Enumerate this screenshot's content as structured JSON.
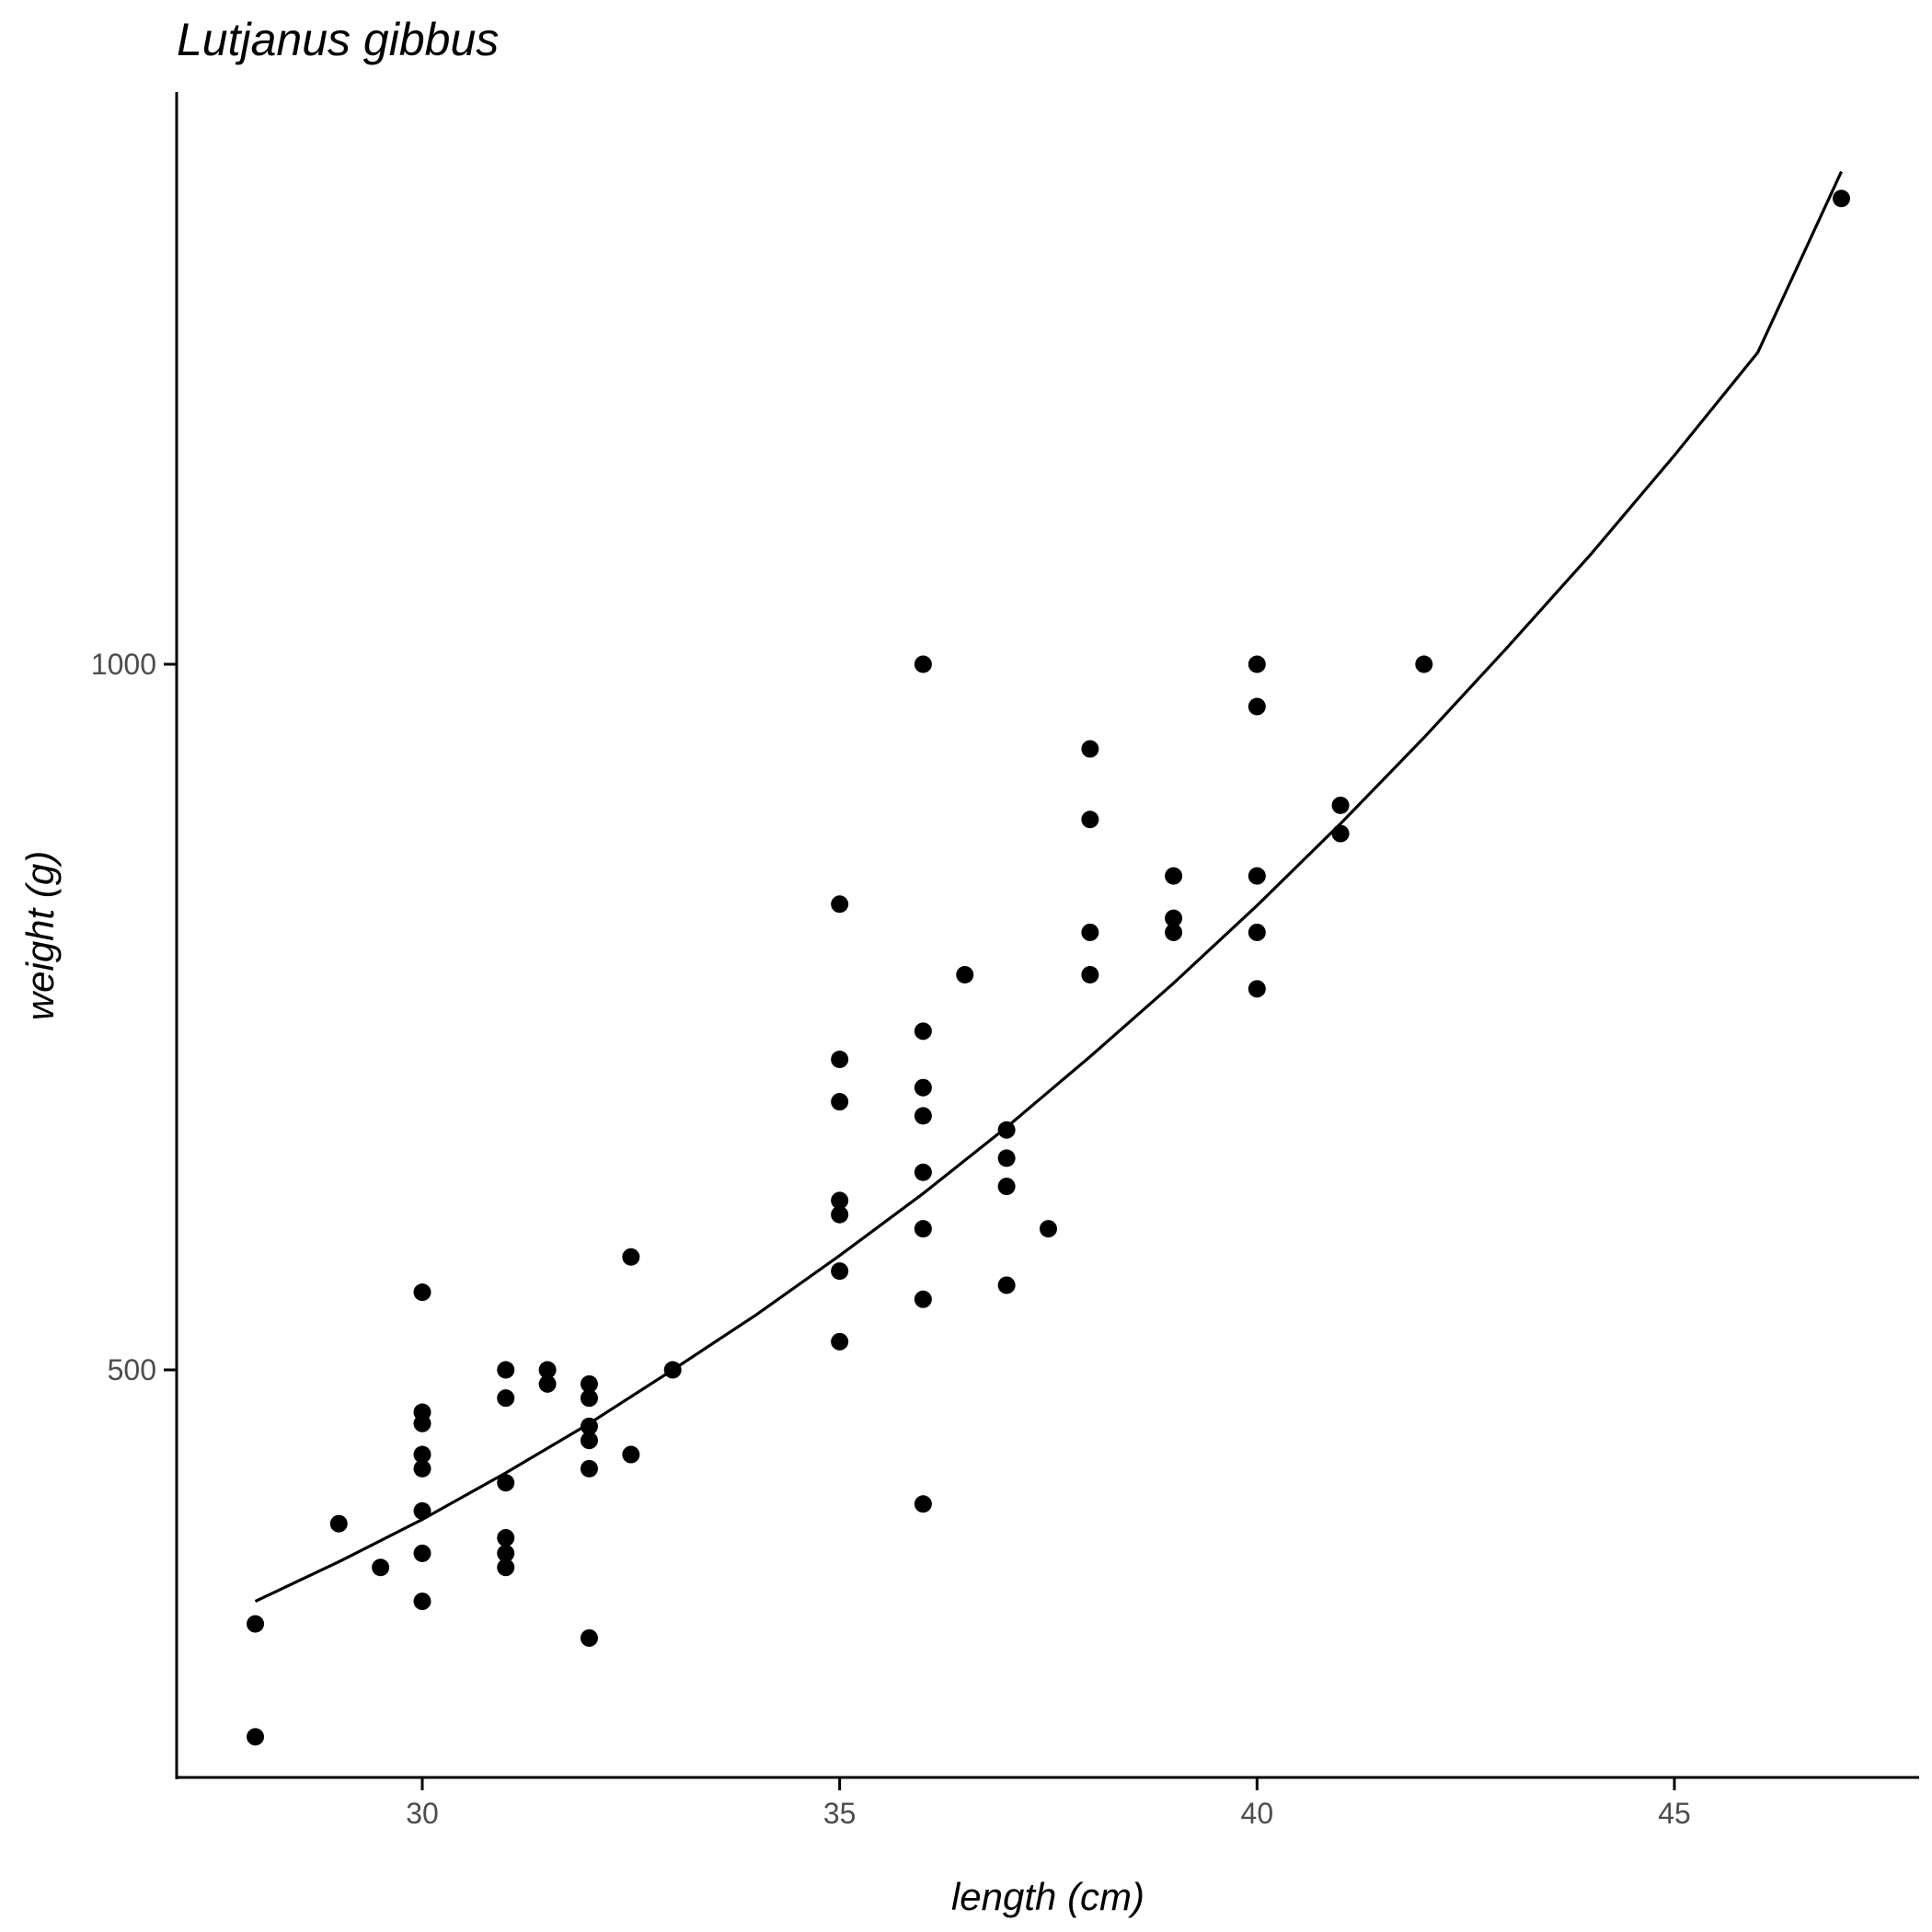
{
  "chart_data": {
    "type": "scatter",
    "title": "Lutjanus gibbus",
    "xlabel": "length (cm)",
    "ylabel": "weight (g)",
    "xlim": [
      27.05,
      47.95
    ],
    "ylim": [
      200,
      1330
    ],
    "x_ticks": [
      30,
      35,
      40,
      45
    ],
    "y_ticks": [
      500,
      1000
    ],
    "x_tick_labels": [
      "30",
      "35",
      "40",
      "45"
    ],
    "y_tick_labels": [
      "500",
      "1000"
    ],
    "grid": false,
    "legend": "none",
    "point_color": "#000000",
    "series": [
      {
        "points": [
          {
            "x": 28,
            "y": 320
          },
          {
            "x": 28,
            "y": 240
          },
          {
            "x": 29,
            "y": 391
          },
          {
            "x": 29.5,
            "y": 360
          },
          {
            "x": 30,
            "y": 555
          },
          {
            "x": 30,
            "y": 470
          },
          {
            "x": 30,
            "y": 462
          },
          {
            "x": 30,
            "y": 440
          },
          {
            "x": 30,
            "y": 430
          },
          {
            "x": 30,
            "y": 400
          },
          {
            "x": 30,
            "y": 370
          },
          {
            "x": 30,
            "y": 336
          },
          {
            "x": 31,
            "y": 500
          },
          {
            "x": 31,
            "y": 480
          },
          {
            "x": 31,
            "y": 420
          },
          {
            "x": 31,
            "y": 381
          },
          {
            "x": 31,
            "y": 370
          },
          {
            "x": 31,
            "y": 360
          },
          {
            "x": 31.5,
            "y": 500
          },
          {
            "x": 31.5,
            "y": 490
          },
          {
            "x": 32,
            "y": 490
          },
          {
            "x": 32,
            "y": 480
          },
          {
            "x": 32,
            "y": 460
          },
          {
            "x": 32,
            "y": 450
          },
          {
            "x": 32,
            "y": 430
          },
          {
            "x": 32,
            "y": 310
          },
          {
            "x": 32.5,
            "y": 580
          },
          {
            "x": 32.5,
            "y": 440
          },
          {
            "x": 33,
            "y": 500
          },
          {
            "x": 35,
            "y": 830
          },
          {
            "x": 35,
            "y": 720
          },
          {
            "x": 35,
            "y": 690
          },
          {
            "x": 35,
            "y": 620
          },
          {
            "x": 35,
            "y": 610
          },
          {
            "x": 35,
            "y": 570
          },
          {
            "x": 35,
            "y": 520
          },
          {
            "x": 36,
            "y": 1000
          },
          {
            "x": 36,
            "y": 740
          },
          {
            "x": 36,
            "y": 700
          },
          {
            "x": 36,
            "y": 680
          },
          {
            "x": 36,
            "y": 640
          },
          {
            "x": 36,
            "y": 600
          },
          {
            "x": 36,
            "y": 550
          },
          {
            "x": 36,
            "y": 405
          },
          {
            "x": 36.5,
            "y": 780
          },
          {
            "x": 37,
            "y": 670
          },
          {
            "x": 37,
            "y": 650
          },
          {
            "x": 37,
            "y": 630
          },
          {
            "x": 37,
            "y": 560
          },
          {
            "x": 37.5,
            "y": 600
          },
          {
            "x": 38,
            "y": 940
          },
          {
            "x": 38,
            "y": 890
          },
          {
            "x": 38,
            "y": 810
          },
          {
            "x": 38,
            "y": 780
          },
          {
            "x": 39,
            "y": 850
          },
          {
            "x": 39,
            "y": 820
          },
          {
            "x": 39,
            "y": 810
          },
          {
            "x": 40,
            "y": 1000
          },
          {
            "x": 40,
            "y": 970
          },
          {
            "x": 40,
            "y": 850
          },
          {
            "x": 40,
            "y": 810
          },
          {
            "x": 40,
            "y": 770
          },
          {
            "x": 41,
            "y": 900
          },
          {
            "x": 41,
            "y": 880
          },
          {
            "x": 42,
            "y": 1000
          },
          {
            "x": 47,
            "y": 1330
          }
        ]
      }
    ],
    "fit_curve": {
      "x": [
        28,
        29,
        30,
        31,
        32,
        33,
        34,
        35,
        36,
        37,
        38,
        39,
        40,
        41,
        42,
        43,
        44,
        45,
        46,
        47
      ],
      "y": [
        336,
        364,
        394,
        427,
        462,
        500,
        539,
        581,
        625,
        672,
        722,
        774,
        829,
        887,
        948,
        1012,
        1078,
        1148,
        1221,
        1349
      ]
    }
  }
}
